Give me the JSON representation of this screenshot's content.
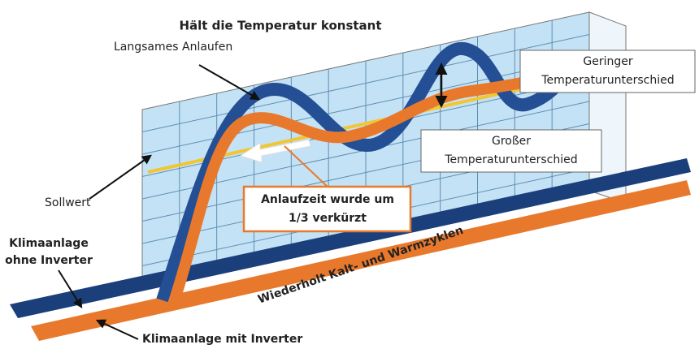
{
  "title": "Hält die Temperatur konstant",
  "labels": {
    "slow_start": "Langsames Anlaufen",
    "setpoint": "Sollwert",
    "cycles": "Wiederholt Kalt- und Warmzyklen"
  },
  "boxes": {
    "small_difference": [
      "Geringer",
      "Temperaturunterschied"
    ],
    "large_difference": [
      "Großer",
      "Temperaturunterschied"
    ],
    "startup_time": [
      "Anlaufzeit wurde um",
      "1/3 verkürzt"
    ]
  },
  "legend": {
    "without_inverter": [
      "Klimaanlage",
      "ohne Inverter"
    ],
    "with_inverter": "Klimaanlage mit Inverter"
  }
}
